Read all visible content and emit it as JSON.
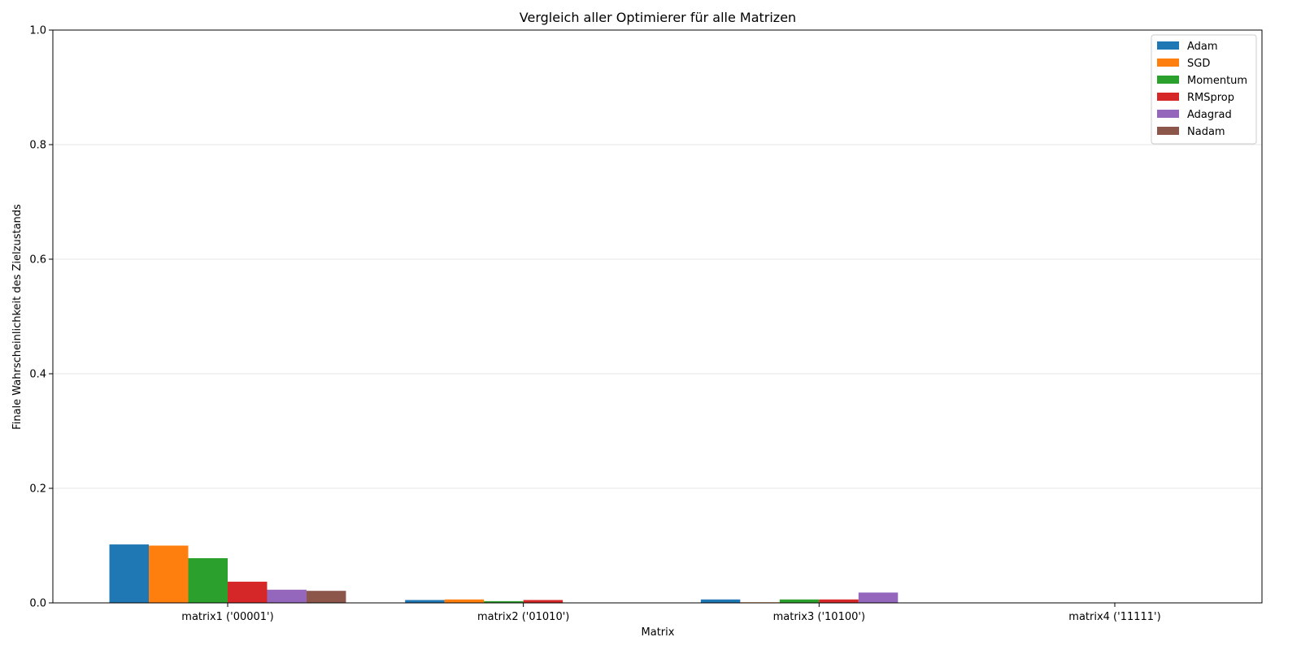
{
  "chart_data": {
    "type": "bar",
    "title": "Vergleich aller Optimierer für alle Matrizen",
    "xlabel": "Matrix",
    "ylabel": "Finale Wahrscheinlichkeit des Zielzustands",
    "ylim": [
      0,
      1.0
    ],
    "yticks": [
      "0.0",
      "0.2",
      "0.4",
      "0.6",
      "0.8",
      "1.0"
    ],
    "grid": "y",
    "legend_position": "top-right",
    "categories": [
      "matrix1 ('00001')",
      "matrix2 ('01010')",
      "matrix3 ('10100')",
      "matrix4 ('11111')"
    ],
    "series": [
      {
        "name": "Adam",
        "color": "#1f77b4",
        "values": [
          0.102,
          0.005,
          0.006,
          0.0
        ]
      },
      {
        "name": "SGD",
        "color": "#ff7f0e",
        "values": [
          0.1,
          0.006,
          0.001,
          0.0
        ]
      },
      {
        "name": "Momentum",
        "color": "#2ca02c",
        "values": [
          0.078,
          0.003,
          0.006,
          0.0
        ]
      },
      {
        "name": "RMSprop",
        "color": "#d62728",
        "values": [
          0.037,
          0.005,
          0.006,
          0.0
        ]
      },
      {
        "name": "Adagrad",
        "color": "#9467bd",
        "values": [
          0.023,
          0.0,
          0.018,
          0.0
        ]
      },
      {
        "name": "Nadam",
        "color": "#8c564b",
        "values": [
          0.021,
          0.0,
          0.0,
          0.0
        ]
      }
    ]
  }
}
